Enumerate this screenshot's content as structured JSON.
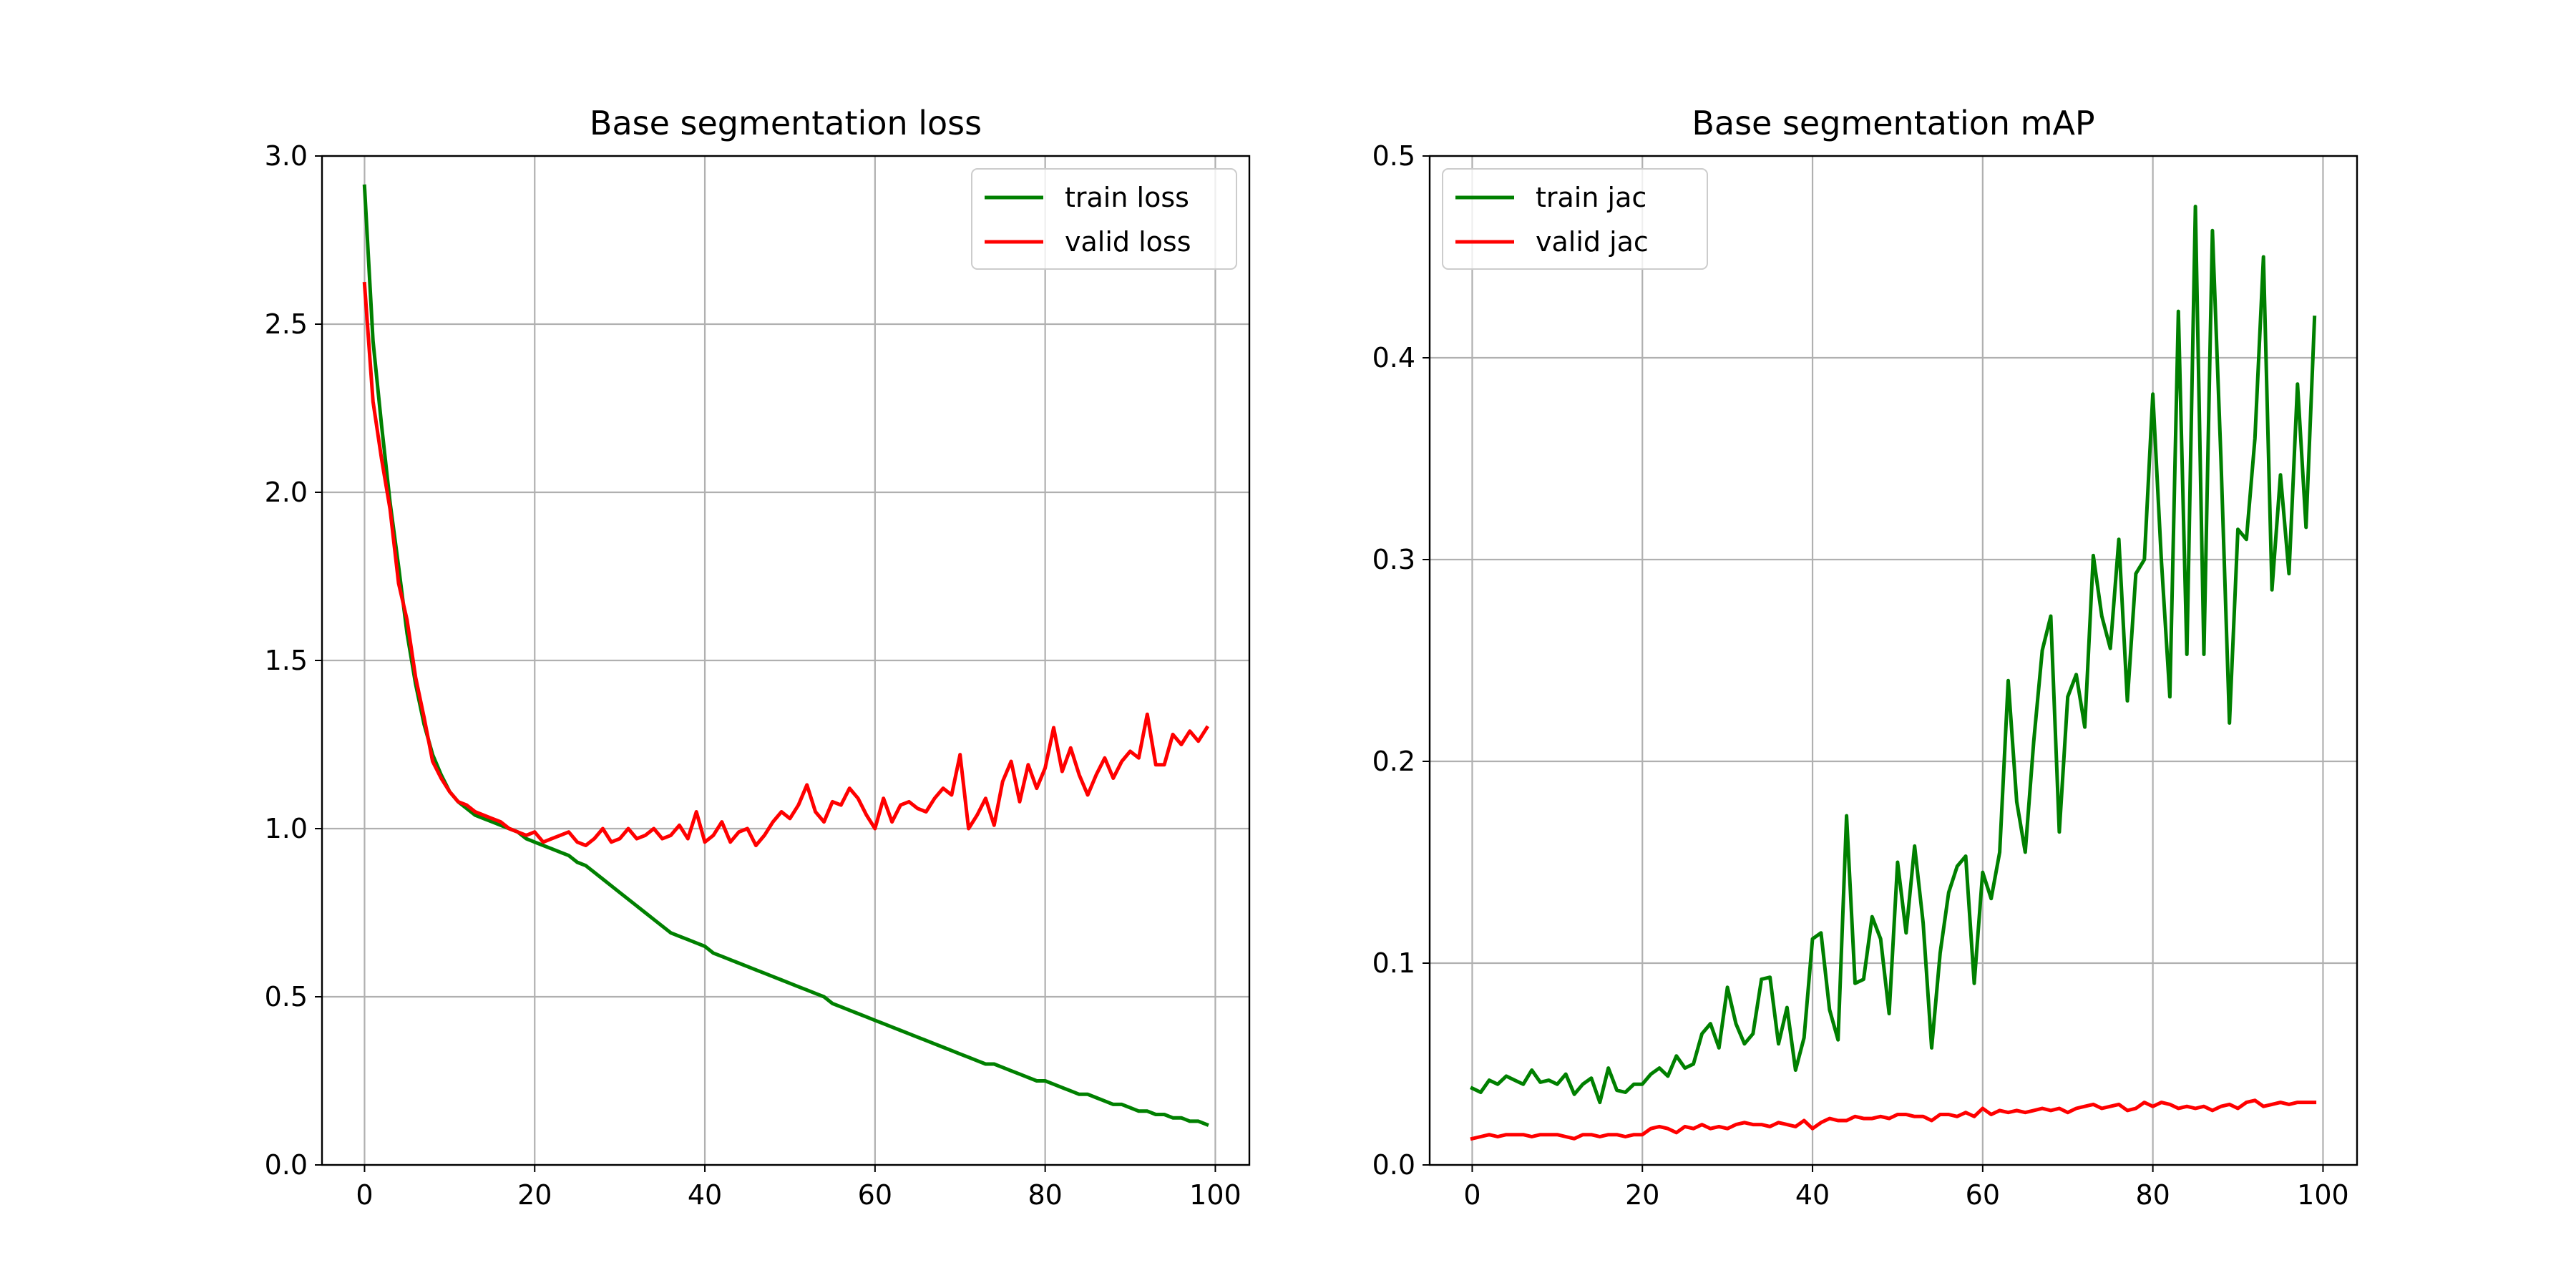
{
  "chart_data": [
    {
      "type": "line",
      "title": "Base segmentation loss",
      "xlabel": "",
      "ylabel": "",
      "xlim": [
        -5,
        104
      ],
      "ylim": [
        0,
        3.0
      ],
      "xticks": [
        0,
        20,
        40,
        60,
        80,
        100
      ],
      "yticks": [
        0.0,
        0.5,
        1.0,
        1.5,
        2.0,
        2.5,
        3.0
      ],
      "ytick_labels": [
        "0.0",
        "0.5",
        "1.0",
        "1.5",
        "2.0",
        "2.5",
        "3.0"
      ],
      "grid": true,
      "legend_position": "upper right",
      "series": [
        {
          "name": "train loss",
          "color": "#008000",
          "x": [
            0,
            1,
            2,
            3,
            4,
            5,
            6,
            7,
            8,
            9,
            10,
            11,
            12,
            13,
            14,
            15,
            16,
            17,
            18,
            19,
            20,
            21,
            22,
            23,
            24,
            25,
            26,
            27,
            28,
            29,
            30,
            31,
            32,
            33,
            34,
            35,
            36,
            37,
            38,
            39,
            40,
            41,
            42,
            43,
            44,
            45,
            46,
            47,
            48,
            49,
            50,
            51,
            52,
            53,
            54,
            55,
            56,
            57,
            58,
            59,
            60,
            61,
            62,
            63,
            64,
            65,
            66,
            67,
            68,
            69,
            70,
            71,
            72,
            73,
            74,
            75,
            76,
            77,
            78,
            79,
            80,
            81,
            82,
            83,
            84,
            85,
            86,
            87,
            88,
            89,
            90,
            91,
            92,
            93,
            94,
            95,
            96,
            97,
            98,
            99
          ],
          "y": [
            2.91,
            2.45,
            2.2,
            1.97,
            1.78,
            1.58,
            1.43,
            1.31,
            1.22,
            1.16,
            1.11,
            1.08,
            1.06,
            1.04,
            1.03,
            1.02,
            1.01,
            1.0,
            0.99,
            0.97,
            0.96,
            0.95,
            0.94,
            0.93,
            0.92,
            0.9,
            0.89,
            0.87,
            0.85,
            0.83,
            0.81,
            0.79,
            0.77,
            0.75,
            0.73,
            0.71,
            0.69,
            0.68,
            0.67,
            0.66,
            0.65,
            0.63,
            0.62,
            0.61,
            0.6,
            0.59,
            0.58,
            0.57,
            0.56,
            0.55,
            0.54,
            0.53,
            0.52,
            0.51,
            0.5,
            0.48,
            0.47,
            0.46,
            0.45,
            0.44,
            0.43,
            0.42,
            0.41,
            0.4,
            0.39,
            0.38,
            0.37,
            0.36,
            0.35,
            0.34,
            0.33,
            0.32,
            0.31,
            0.3,
            0.3,
            0.29,
            0.28,
            0.27,
            0.26,
            0.25,
            0.25,
            0.24,
            0.23,
            0.22,
            0.21,
            0.21,
            0.2,
            0.19,
            0.18,
            0.18,
            0.17,
            0.16,
            0.16,
            0.15,
            0.15,
            0.14,
            0.14,
            0.13,
            0.13,
            0.12
          ]
        },
        {
          "name": "valid loss",
          "color": "#ff0000",
          "x": [
            0,
            1,
            2,
            3,
            4,
            5,
            6,
            7,
            8,
            9,
            10,
            11,
            12,
            13,
            14,
            15,
            16,
            17,
            18,
            19,
            20,
            21,
            22,
            23,
            24,
            25,
            26,
            27,
            28,
            29,
            30,
            31,
            32,
            33,
            34,
            35,
            36,
            37,
            38,
            39,
            40,
            41,
            42,
            43,
            44,
            45,
            46,
            47,
            48,
            49,
            50,
            51,
            52,
            53,
            54,
            55,
            56,
            57,
            58,
            59,
            60,
            61,
            62,
            63,
            64,
            65,
            66,
            67,
            68,
            69,
            70,
            71,
            72,
            73,
            74,
            75,
            76,
            77,
            78,
            79,
            80,
            81,
            82,
            83,
            84,
            85,
            86,
            87,
            88,
            89,
            90,
            91,
            92,
            93,
            94,
            95,
            96,
            97,
            98,
            99
          ],
          "y": [
            2.62,
            2.27,
            2.1,
            1.95,
            1.73,
            1.62,
            1.45,
            1.33,
            1.2,
            1.15,
            1.11,
            1.08,
            1.07,
            1.05,
            1.04,
            1.03,
            1.02,
            1.0,
            0.99,
            0.98,
            0.99,
            0.96,
            0.97,
            0.98,
            0.99,
            0.96,
            0.95,
            0.97,
            1.0,
            0.96,
            0.97,
            1.0,
            0.97,
            0.98,
            1.0,
            0.97,
            0.98,
            1.01,
            0.97,
            1.05,
            0.96,
            0.98,
            1.02,
            0.96,
            0.99,
            1.0,
            0.95,
            0.98,
            1.02,
            1.05,
            1.03,
            1.07,
            1.13,
            1.05,
            1.02,
            1.08,
            1.07,
            1.12,
            1.09,
            1.04,
            1.0,
            1.09,
            1.02,
            1.07,
            1.08,
            1.06,
            1.05,
            1.09,
            1.12,
            1.1,
            1.22,
            1.0,
            1.04,
            1.09,
            1.01,
            1.14,
            1.2,
            1.08,
            1.19,
            1.12,
            1.18,
            1.3,
            1.17,
            1.24,
            1.16,
            1.1,
            1.16,
            1.21,
            1.15,
            1.2,
            1.23,
            1.21,
            1.34,
            1.19,
            1.19,
            1.28,
            1.25,
            1.29,
            1.26,
            1.3
          ]
        }
      ]
    },
    {
      "type": "line",
      "title": "Base segmentation mAP",
      "xlabel": "",
      "ylabel": "",
      "xlim": [
        -5,
        104
      ],
      "ylim": [
        0,
        0.5
      ],
      "xticks": [
        0,
        20,
        40,
        60,
        80,
        100
      ],
      "yticks": [
        0.0,
        0.1,
        0.2,
        0.3,
        0.4,
        0.5
      ],
      "ytick_labels": [
        "0.0",
        "0.1",
        "0.2",
        "0.3",
        "0.4",
        "0.5"
      ],
      "grid": true,
      "legend_position": "upper left",
      "series": [
        {
          "name": "train jac",
          "color": "#008000",
          "x": [
            0,
            1,
            2,
            3,
            4,
            5,
            6,
            7,
            8,
            9,
            10,
            11,
            12,
            13,
            14,
            15,
            16,
            17,
            18,
            19,
            20,
            21,
            22,
            23,
            24,
            25,
            26,
            27,
            28,
            29,
            30,
            31,
            32,
            33,
            34,
            35,
            36,
            37,
            38,
            39,
            40,
            41,
            42,
            43,
            44,
            45,
            46,
            47,
            48,
            49,
            50,
            51,
            52,
            53,
            54,
            55,
            56,
            57,
            58,
            59,
            60,
            61,
            62,
            63,
            64,
            65,
            66,
            67,
            68,
            69,
            70,
            71,
            72,
            73,
            74,
            75,
            76,
            77,
            78,
            79,
            80,
            81,
            82,
            83,
            84,
            85,
            86,
            87,
            88,
            89,
            90,
            91,
            92,
            93,
            94,
            95,
            96,
            97,
            98,
            99
          ],
          "y": [
            0.038,
            0.036,
            0.042,
            0.04,
            0.044,
            0.042,
            0.04,
            0.047,
            0.041,
            0.042,
            0.04,
            0.045,
            0.035,
            0.04,
            0.043,
            0.031,
            0.048,
            0.037,
            0.036,
            0.04,
            0.04,
            0.045,
            0.048,
            0.044,
            0.054,
            0.048,
            0.05,
            0.065,
            0.07,
            0.058,
            0.088,
            0.07,
            0.06,
            0.065,
            0.092,
            0.093,
            0.06,
            0.078,
            0.047,
            0.063,
            0.112,
            0.115,
            0.077,
            0.062,
            0.173,
            0.09,
            0.092,
            0.123,
            0.112,
            0.075,
            0.15,
            0.115,
            0.158,
            0.12,
            0.058,
            0.105,
            0.135,
            0.148,
            0.153,
            0.09,
            0.145,
            0.132,
            0.155,
            0.24,
            0.18,
            0.155,
            0.21,
            0.255,
            0.272,
            0.165,
            0.232,
            0.243,
            0.217,
            0.302,
            0.272,
            0.256,
            0.31,
            0.23,
            0.293,
            0.3,
            0.382,
            0.3,
            0.232,
            0.423,
            0.253,
            0.475,
            0.253,
            0.463,
            0.35,
            0.219,
            0.315,
            0.31,
            0.36,
            0.45,
            0.285,
            0.342,
            0.293,
            0.387,
            0.316,
            0.42
          ]
        },
        {
          "name": "valid jac",
          "color": "#ff0000",
          "x": [
            0,
            1,
            2,
            3,
            4,
            5,
            6,
            7,
            8,
            9,
            10,
            11,
            12,
            13,
            14,
            15,
            16,
            17,
            18,
            19,
            20,
            21,
            22,
            23,
            24,
            25,
            26,
            27,
            28,
            29,
            30,
            31,
            32,
            33,
            34,
            35,
            36,
            37,
            38,
            39,
            40,
            41,
            42,
            43,
            44,
            45,
            46,
            47,
            48,
            49,
            50,
            51,
            52,
            53,
            54,
            55,
            56,
            57,
            58,
            59,
            60,
            61,
            62,
            63,
            64,
            65,
            66,
            67,
            68,
            69,
            70,
            71,
            72,
            73,
            74,
            75,
            76,
            77,
            78,
            79,
            80,
            81,
            82,
            83,
            84,
            85,
            86,
            87,
            88,
            89,
            90,
            91,
            92,
            93,
            94,
            95,
            96,
            97,
            98,
            99
          ],
          "y": [
            0.013,
            0.014,
            0.015,
            0.014,
            0.015,
            0.015,
            0.015,
            0.014,
            0.015,
            0.015,
            0.015,
            0.014,
            0.013,
            0.015,
            0.015,
            0.014,
            0.015,
            0.015,
            0.014,
            0.015,
            0.015,
            0.018,
            0.019,
            0.018,
            0.016,
            0.019,
            0.018,
            0.02,
            0.018,
            0.019,
            0.018,
            0.02,
            0.021,
            0.02,
            0.02,
            0.019,
            0.021,
            0.02,
            0.019,
            0.022,
            0.018,
            0.021,
            0.023,
            0.022,
            0.022,
            0.024,
            0.023,
            0.023,
            0.024,
            0.023,
            0.025,
            0.025,
            0.024,
            0.024,
            0.022,
            0.025,
            0.025,
            0.024,
            0.026,
            0.024,
            0.028,
            0.025,
            0.027,
            0.026,
            0.027,
            0.026,
            0.027,
            0.028,
            0.027,
            0.028,
            0.026,
            0.028,
            0.029,
            0.03,
            0.028,
            0.029,
            0.03,
            0.027,
            0.028,
            0.031,
            0.029,
            0.031,
            0.03,
            0.028,
            0.029,
            0.028,
            0.029,
            0.027,
            0.029,
            0.03,
            0.028,
            0.031,
            0.032,
            0.029,
            0.03,
            0.031,
            0.03,
            0.031,
            0.031,
            0.031
          ]
        }
      ]
    }
  ]
}
